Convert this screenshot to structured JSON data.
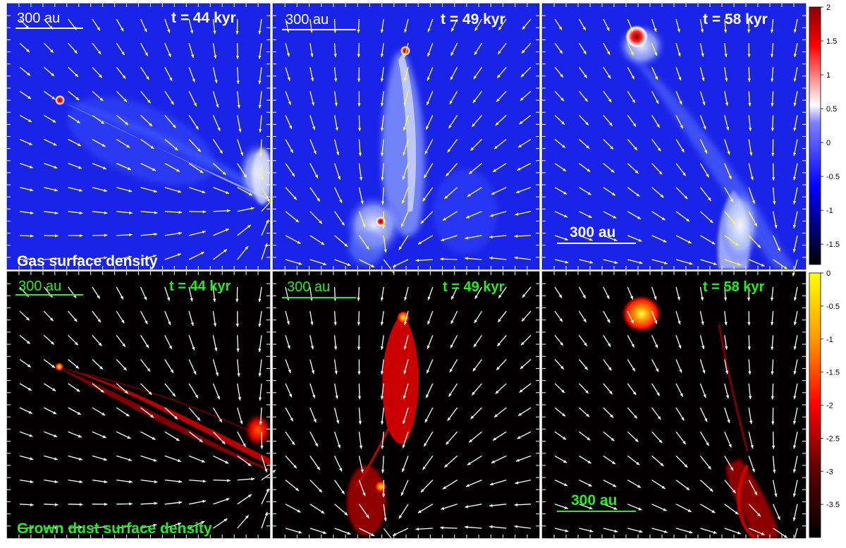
{
  "figure": {
    "rows": [
      {
        "quantity_label": "Gas surface density",
        "label_color": "#ffffff",
        "arrow_color": "#ffff33",
        "colorbar": {
          "colormap": "black-blue-white-red",
          "stops": [
            "#000000",
            "#0000ff",
            "#ffffff",
            "#ff0000",
            "#8b0000"
          ],
          "ticks": [
            "2",
            "1.5",
            "1",
            "0.5",
            "0",
            "-0.5",
            "-1",
            "-1.5"
          ],
          "range": [
            -1.8,
            2
          ]
        },
        "panels": [
          {
            "time_label": "t = 44 kyr",
            "scale_label": "300 au"
          },
          {
            "time_label": "t = 49 kyr",
            "scale_label": "300 au"
          },
          {
            "time_label": "t = 58 kyr",
            "scale_label": "300 au"
          }
        ]
      },
      {
        "quantity_label": "Grown dust surface density",
        "label_color": "#22ee22",
        "arrow_color": "#ffffff",
        "colorbar": {
          "colormap": "black-red-yellow",
          "stops": [
            "#000000",
            "#5a0000",
            "#ff0000",
            "#ff9900",
            "#ffff00"
          ],
          "ticks": [
            "0",
            "-0.5",
            "-1",
            "-1.5",
            "-2",
            "-2.5",
            "-3",
            "-3.5"
          ],
          "range": [
            -4,
            0
          ]
        },
        "panels": [
          {
            "time_label": "t = 44 kyr",
            "scale_label": "300 au"
          },
          {
            "time_label": "t = 49 kyr",
            "scale_label": "300 au"
          },
          {
            "time_label": "t = 58 kyr",
            "scale_label": "300 au"
          }
        ]
      }
    ]
  }
}
